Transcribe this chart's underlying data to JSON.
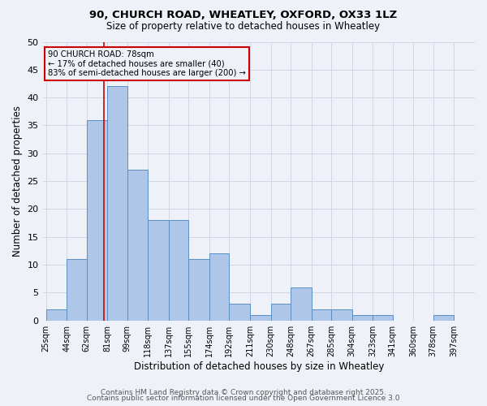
{
  "title1": "90, CHURCH ROAD, WHEATLEY, OXFORD, OX33 1LZ",
  "title2": "Size of property relative to detached houses in Wheatley",
  "xlabel": "Distribution of detached houses by size in Wheatley",
  "ylabel": "Number of detached properties",
  "bin_labels": [
    "25sqm",
    "44sqm",
    "62sqm",
    "81sqm",
    "99sqm",
    "118sqm",
    "137sqm",
    "155sqm",
    "174sqm",
    "192sqm",
    "211sqm",
    "230sqm",
    "248sqm",
    "267sqm",
    "285sqm",
    "304sqm",
    "323sqm",
    "341sqm",
    "360sqm",
    "378sqm",
    "397sqm"
  ],
  "bin_edges": [
    25,
    44,
    62,
    81,
    99,
    118,
    137,
    155,
    174,
    192,
    211,
    230,
    248,
    267,
    285,
    304,
    323,
    341,
    360,
    378,
    397
  ],
  "bar_heights": [
    2,
    11,
    36,
    42,
    27,
    18,
    18,
    11,
    12,
    3,
    1,
    3,
    6,
    2,
    2,
    1,
    1,
    0,
    0,
    1
  ],
  "bar_color": "#aec6e8",
  "bar_edge_color": "#5a8fc2",
  "property_size": 78,
  "red_line_color": "#cc0000",
  "annotation_text": "90 CHURCH ROAD: 78sqm\n← 17% of detached houses are smaller (40)\n83% of semi-detached houses are larger (200) →",
  "annotation_box_color": "#cc0000",
  "ylim": [
    0,
    50
  ],
  "yticks": [
    0,
    5,
    10,
    15,
    20,
    25,
    30,
    35,
    40,
    45,
    50
  ],
  "grid_color": "#d0d8e8",
  "background_color": "#eef2f8",
  "footer_line1": "Contains HM Land Registry data © Crown copyright and database right 2025.",
  "footer_line2": "Contains public sector information licensed under the Open Government Licence 3.0"
}
